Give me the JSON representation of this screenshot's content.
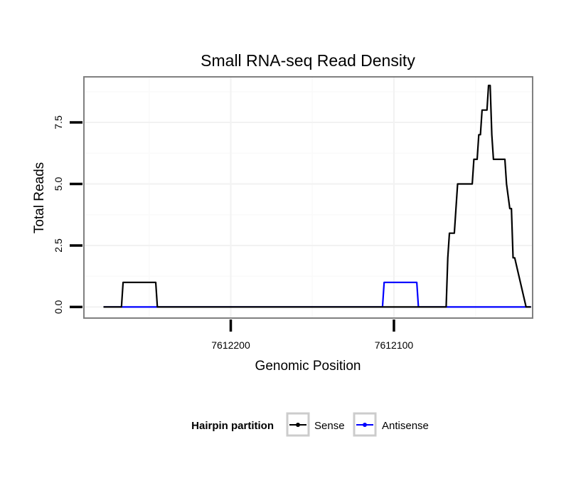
{
  "chart_data": {
    "type": "line",
    "title": "Small RNA-seq Read Density",
    "xlabel": "Genomic Position",
    "ylabel": "Total Reads",
    "x_reversed": true,
    "xlim": [
      7612290,
      7612015
    ],
    "ylim": [
      -0.45,
      9.35
    ],
    "x_ticks": [
      {
        "value": 7612200,
        "label": "7612200"
      },
      {
        "value": 7612100,
        "label": "7612100"
      }
    ],
    "y_ticks": [
      {
        "value": 0,
        "label": "0.0"
      },
      {
        "value": 2.5,
        "label": "2.5"
      },
      {
        "value": 5,
        "label": "5.0"
      },
      {
        "value": 7.5,
        "label": "7.5"
      }
    ],
    "grid": true,
    "legend": {
      "title": "Hairpin partition",
      "position": "bottom",
      "entries": [
        {
          "label": "Sense",
          "color": "#000000"
        },
        {
          "label": "Antisense",
          "color": "#0000ff"
        }
      ]
    },
    "series": [
      {
        "name": "Antisense",
        "color": "#0000ff",
        "x": [
          7612278,
          7612107,
          7612106,
          7612086,
          7612085,
          7612016
        ],
        "y": [
          0,
          0,
          1,
          1,
          0,
          0
        ]
      },
      {
        "name": "Sense",
        "color": "#000000",
        "x": [
          7612278,
          7612267,
          7612266,
          7612246,
          7612245,
          7612068,
          7612067,
          7612066,
          7612065,
          7612063,
          7612062,
          7612061,
          7612060,
          7612052,
          7612051,
          7612049,
          7612048,
          7612047,
          7612046,
          7612043,
          7612042,
          7612041,
          7612040,
          7612039,
          7612038,
          7612032,
          7612031,
          7612029,
          7612028,
          7612027,
          7612026,
          7612019,
          7612016
        ],
        "y": [
          0,
          0,
          1,
          1,
          0,
          0,
          2,
          3,
          3,
          3,
          4,
          5,
          5,
          5,
          6,
          6,
          7,
          7,
          8,
          8,
          9,
          9,
          7,
          6,
          6,
          6,
          5,
          4,
          4,
          2,
          2,
          0,
          0
        ]
      }
    ]
  },
  "colors": {
    "panel_border": "#808080",
    "grid_major": "#f2f2f2",
    "grid_minor": "#fafafa",
    "legend_box": "#cccccc"
  }
}
